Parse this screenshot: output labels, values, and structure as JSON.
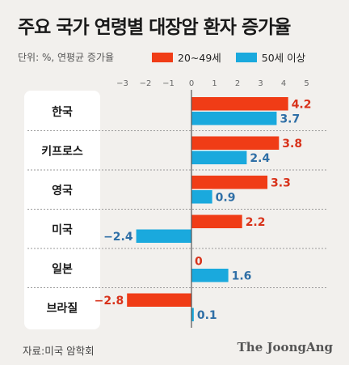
{
  "title": "주요 국가 연령별 대장암 환자 증가율",
  "unit_note": "단위: %, 연평균 증가율",
  "source": "자료:미국 암학회",
  "brand": "The JoongAng",
  "colors": {
    "series1": "#f03c16",
    "series2": "#1aa9dd",
    "value_label1": "#d8321a",
    "value_label2": "#2f6fa6",
    "label_bg": "#ffffff"
  },
  "chart_data": {
    "type": "bar",
    "orientation": "horizontal",
    "categories": [
      "한국",
      "키프로스",
      "영국",
      "미국",
      "일본",
      "브라질"
    ],
    "series": [
      {
        "name": "20~49세",
        "values": [
          4.2,
          3.8,
          3.3,
          2.2,
          0,
          -2.8
        ]
      },
      {
        "name": "50세 이상",
        "values": [
          3.7,
          2.4,
          0.9,
          -2.4,
          1.6,
          0.1
        ]
      }
    ],
    "value_labels": {
      "series1": [
        "4.2",
        "3.8",
        "3.3",
        "2.2",
        "0",
        "−2.8"
      ],
      "series2": [
        "3.7",
        "2.4",
        "0.9",
        "−2.4",
        "1.6",
        "0.1"
      ]
    },
    "xlim": [
      -3,
      5
    ],
    "xticks": [
      -3,
      -2,
      -1,
      0,
      1,
      2,
      3,
      4,
      5
    ],
    "xtick_labels": [
      "−3",
      "−2",
      "−1",
      "0",
      "1",
      "2",
      "3",
      "4",
      "5"
    ],
    "legend_position": "top-right"
  }
}
